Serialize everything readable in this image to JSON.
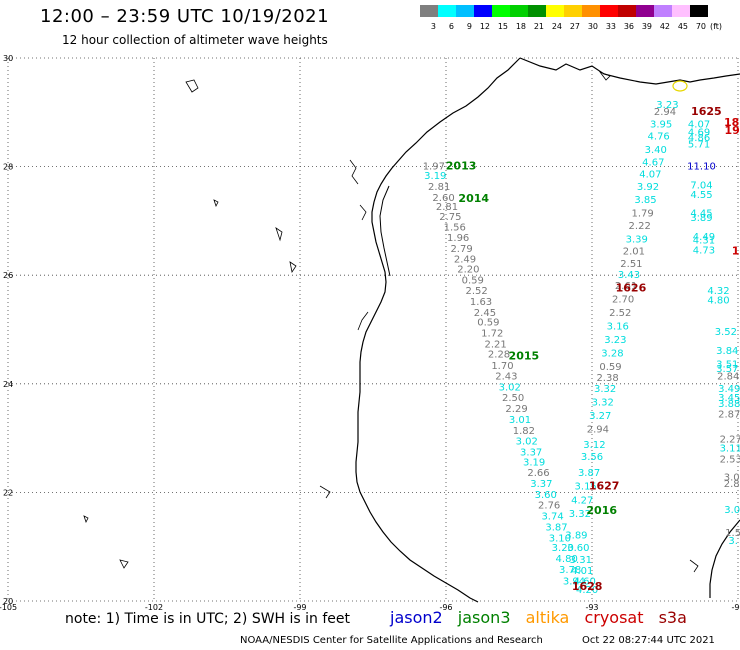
{
  "header": {
    "title": "12:00 – 23:59 UTC 10/19/2021",
    "subtitle": "12 hour collection of altimeter wave heights"
  },
  "legend": {
    "unit": "(ft)",
    "bins": [
      {
        "label": "3",
        "color": "#7f7f7f"
      },
      {
        "label": "6",
        "color": "#00ffff"
      },
      {
        "label": "9",
        "color": "#00bfff"
      },
      {
        "label": "12",
        "color": "#0000ff"
      },
      {
        "label": "15",
        "color": "#00ff00"
      },
      {
        "label": "18",
        "color": "#00d000"
      },
      {
        "label": "21",
        "color": "#009000"
      },
      {
        "label": "24",
        "color": "#ffff00"
      },
      {
        "label": "27",
        "color": "#ffd000"
      },
      {
        "label": "30",
        "color": "#ff9000"
      },
      {
        "label": "33",
        "color": "#ff0000"
      },
      {
        "label": "36",
        "color": "#c00000"
      },
      {
        "label": "39",
        "color": "#900090"
      },
      {
        "label": "42",
        "color": "#c080ff"
      },
      {
        "label": "45",
        "color": "#ffc0ff"
      },
      {
        "label": "70",
        "color": "#000000"
      }
    ]
  },
  "map": {
    "lon_range": [
      -105,
      -90
    ],
    "lat_range": [
      20,
      30
    ],
    "lon_ticks": [
      {
        "value": -105,
        "label": "-105"
      },
      {
        "value": -102,
        "label": "-102"
      },
      {
        "value": -99,
        "label": "-99"
      },
      {
        "value": -96,
        "label": "-96"
      },
      {
        "value": -93,
        "label": "-93"
      },
      {
        "value": -90,
        "label": "-90"
      }
    ],
    "lat_ticks": [
      {
        "value": 30,
        "label": "30"
      },
      {
        "value": 28,
        "label": "28"
      },
      {
        "value": 26,
        "label": "26"
      },
      {
        "value": 24,
        "label": "24"
      },
      {
        "value": 22,
        "label": "22"
      },
      {
        "value": 20,
        "label": "20"
      }
    ],
    "grid": "dotted",
    "satellites": {
      "jason2": "#0000cc",
      "jason3": "#008000",
      "altika": "#ff9900",
      "cryosat": "#cc0000",
      "s3a": "#990000",
      "other": "#00dddd",
      "gray": "#777777"
    },
    "pass_labels": [
      {
        "text": "2013",
        "lon": -95.69,
        "lat": 27.95,
        "sat": "jason3"
      },
      {
        "text": "2014",
        "lon": -95.43,
        "lat": 27.35,
        "sat": "jason3"
      },
      {
        "text": "2015",
        "lon": -94.4,
        "lat": 24.45,
        "sat": "jason3"
      },
      {
        "text": "2016",
        "lon": -92.8,
        "lat": 21.6,
        "sat": "jason3"
      },
      {
        "text": "1626",
        "lon": -92.2,
        "lat": 25.7,
        "sat": "s3a"
      },
      {
        "text": "1627",
        "lon": -92.75,
        "lat": 22.05,
        "sat": "s3a"
      },
      {
        "text": "1628",
        "lon": -93.1,
        "lat": 20.2,
        "sat": "s3a"
      },
      {
        "text": "1625",
        "lon": -90.65,
        "lat": 28.95,
        "sat": "s3a"
      },
      {
        "text": "18",
        "lon": -90.13,
        "lat": 28.75,
        "sat": "cryosat"
      },
      {
        "text": "19",
        "lon": -90.12,
        "lat": 28.6,
        "sat": "cryosat"
      },
      {
        "text": "1",
        "lon": -90.05,
        "lat": 26.38,
        "sat": "cryosat"
      }
    ],
    "observations": [
      {
        "v": "1.97",
        "lon": -96.25,
        "lat": 27.95,
        "s": "gray"
      },
      {
        "v": "3.19",
        "lon": -96.22,
        "lat": 27.77,
        "s": "other"
      },
      {
        "v": "2.81",
        "lon": -96.14,
        "lat": 27.57,
        "s": "gray"
      },
      {
        "v": "2.60",
        "lon": -96.05,
        "lat": 27.37,
        "s": "gray"
      },
      {
        "v": "2.81",
        "lon": -95.98,
        "lat": 27.2,
        "s": "gray"
      },
      {
        "v": "2.75",
        "lon": -95.91,
        "lat": 27.02,
        "s": "gray"
      },
      {
        "v": "1.56",
        "lon": -95.82,
        "lat": 26.82,
        "s": "gray"
      },
      {
        "v": "1.96",
        "lon": -95.75,
        "lat": 26.63,
        "s": "gray"
      },
      {
        "v": "2.79",
        "lon": -95.68,
        "lat": 26.43,
        "s": "gray"
      },
      {
        "v": "2.49",
        "lon": -95.61,
        "lat": 26.23,
        "s": "gray"
      },
      {
        "v": "2.20",
        "lon": -95.54,
        "lat": 26.05,
        "s": "gray"
      },
      {
        "v": "0.59",
        "lon": -95.45,
        "lat": 25.85,
        "s": "gray"
      },
      {
        "v": "2.52",
        "lon": -95.37,
        "lat": 25.65,
        "s": "gray"
      },
      {
        "v": "1.63",
        "lon": -95.28,
        "lat": 25.45,
        "s": "gray"
      },
      {
        "v": "2.45",
        "lon": -95.2,
        "lat": 25.25,
        "s": "gray"
      },
      {
        "v": "0.59",
        "lon": -95.13,
        "lat": 25.07,
        "s": "gray"
      },
      {
        "v": "1.72",
        "lon": -95.05,
        "lat": 24.87,
        "s": "gray"
      },
      {
        "v": "2.21",
        "lon": -94.98,
        "lat": 24.67,
        "s": "gray"
      },
      {
        "v": "2.28",
        "lon": -94.91,
        "lat": 24.48,
        "s": "gray"
      },
      {
        "v": "1.70",
        "lon": -94.84,
        "lat": 24.27,
        "s": "gray"
      },
      {
        "v": "2.43",
        "lon": -94.76,
        "lat": 24.08,
        "s": "gray"
      },
      {
        "v": "3.02",
        "lon": -94.69,
        "lat": 23.88,
        "s": "other"
      },
      {
        "v": "2.50",
        "lon": -94.62,
        "lat": 23.68,
        "s": "gray"
      },
      {
        "v": "2.29",
        "lon": -94.55,
        "lat": 23.48,
        "s": "gray"
      },
      {
        "v": "3.01",
        "lon": -94.48,
        "lat": 23.28,
        "s": "other"
      },
      {
        "v": "1.82",
        "lon": -94.4,
        "lat": 23.08,
        "s": "gray"
      },
      {
        "v": "3.02",
        "lon": -94.34,
        "lat": 22.88,
        "s": "other"
      },
      {
        "v": "3.37",
        "lon": -94.25,
        "lat": 22.68,
        "s": "other"
      },
      {
        "v": "3.19",
        "lon": -94.19,
        "lat": 22.5,
        "s": "other"
      },
      {
        "v": "2.66",
        "lon": -94.1,
        "lat": 22.3,
        "s": "gray"
      },
      {
        "v": "3.37",
        "lon": -94.04,
        "lat": 22.1,
        "s": "other"
      },
      {
        "v": "3.60",
        "lon": -93.95,
        "lat": 21.9,
        "s": "other"
      },
      {
        "v": "2.76",
        "lon": -93.88,
        "lat": 21.7,
        "s": "gray"
      },
      {
        "v": "3.74",
        "lon": -93.81,
        "lat": 21.5,
        "s": "other"
      },
      {
        "v": "3.87",
        "lon": -93.73,
        "lat": 21.3,
        "s": "other"
      },
      {
        "v": "3.10",
        "lon": -93.66,
        "lat": 21.1,
        "s": "other"
      },
      {
        "v": "3.20",
        "lon": -93.6,
        "lat": 20.92,
        "s": "other"
      },
      {
        "v": "4.80",
        "lon": -93.52,
        "lat": 20.72,
        "s": "other"
      },
      {
        "v": "3.78",
        "lon": -93.45,
        "lat": 20.52,
        "s": "other"
      },
      {
        "v": "3.94",
        "lon": -93.37,
        "lat": 20.3,
        "s": "other"
      },
      {
        "v": "4.20",
        "lon": -93.1,
        "lat": 20.15,
        "s": "other"
      },
      {
        "v": "4.60",
        "lon": -93.15,
        "lat": 20.3,
        "s": "other"
      },
      {
        "v": "4.01",
        "lon": -93.2,
        "lat": 20.5,
        "s": "other"
      },
      {
        "v": "3.31",
        "lon": -93.23,
        "lat": 20.7,
        "s": "other"
      },
      {
        "v": "3.60",
        "lon": -93.28,
        "lat": 20.92,
        "s": "other"
      },
      {
        "v": "3.89",
        "lon": -93.32,
        "lat": 21.15,
        "s": "other"
      },
      {
        "v": "3.32",
        "lon": -93.25,
        "lat": 21.55,
        "s": "other"
      },
      {
        "v": "4.27",
        "lon": -93.2,
        "lat": 21.8,
        "s": "other"
      },
      {
        "v": "3.15",
        "lon": -93.13,
        "lat": 22.05,
        "s": "other"
      },
      {
        "v": "3.87",
        "lon": -93.06,
        "lat": 22.3,
        "s": "other"
      },
      {
        "v": "3.56",
        "lon": -93.0,
        "lat": 22.6,
        "s": "other"
      },
      {
        "v": "3.12",
        "lon": -92.95,
        "lat": 22.82,
        "s": "other"
      },
      {
        "v": "2.94",
        "lon": -92.88,
        "lat": 23.1,
        "s": "gray"
      },
      {
        "v": "3.27",
        "lon": -92.83,
        "lat": 23.35,
        "s": "other"
      },
      {
        "v": "3.32",
        "lon": -92.78,
        "lat": 23.6,
        "s": "other"
      },
      {
        "v": "3.32",
        "lon": -92.73,
        "lat": 23.85,
        "s": "other"
      },
      {
        "v": "2.38",
        "lon": -92.68,
        "lat": 24.05,
        "s": "gray"
      },
      {
        "v": "0.59",
        "lon": -92.62,
        "lat": 24.25,
        "s": "gray"
      },
      {
        "v": "3.28",
        "lon": -92.58,
        "lat": 24.5,
        "s": "other"
      },
      {
        "v": "3.23",
        "lon": -92.52,
        "lat": 24.75,
        "s": "other"
      },
      {
        "v": "3.16",
        "lon": -92.47,
        "lat": 25.0,
        "s": "other"
      },
      {
        "v": "2.52",
        "lon": -92.42,
        "lat": 25.25,
        "s": "gray"
      },
      {
        "v": "2.70",
        "lon": -92.36,
        "lat": 25.5,
        "s": "gray"
      },
      {
        "v": "2.61",
        "lon": -92.3,
        "lat": 25.75,
        "s": "gray"
      },
      {
        "v": "3.43",
        "lon": -92.24,
        "lat": 25.95,
        "s": "other"
      },
      {
        "v": "2.51",
        "lon": -92.19,
        "lat": 26.15,
        "s": "gray"
      },
      {
        "v": "2.01",
        "lon": -92.14,
        "lat": 26.38,
        "s": "gray"
      },
      {
        "v": "3.39",
        "lon": -92.08,
        "lat": 26.6,
        "s": "other"
      },
      {
        "v": "2.22",
        "lon": -92.02,
        "lat": 26.85,
        "s": "gray"
      },
      {
        "v": "1.79",
        "lon": -91.96,
        "lat": 27.08,
        "s": "gray"
      },
      {
        "v": "3.85",
        "lon": -91.9,
        "lat": 27.33,
        "s": "other"
      },
      {
        "v": "3.92",
        "lon": -91.85,
        "lat": 27.57,
        "s": "other"
      },
      {
        "v": "4.07",
        "lon": -91.8,
        "lat": 27.8,
        "s": "other"
      },
      {
        "v": "4.67",
        "lon": -91.74,
        "lat": 28.02,
        "s": "other"
      },
      {
        "v": "3.40",
        "lon": -91.69,
        "lat": 28.25,
        "s": "other"
      },
      {
        "v": "4.76",
        "lon": -91.63,
        "lat": 28.5,
        "s": "other"
      },
      {
        "v": "3.95",
        "lon": -91.58,
        "lat": 28.72,
        "s": "other"
      },
      {
        "v": "2.94",
        "lon": -91.5,
        "lat": 28.95,
        "s": "gray"
      },
      {
        "v": "3.23",
        "lon": -91.45,
        "lat": 29.08,
        "s": "other"
      },
      {
        "v": "4.07",
        "lon": -90.8,
        "lat": 28.72,
        "s": "other"
      },
      {
        "v": "4.69",
        "lon": -90.8,
        "lat": 28.57,
        "s": "other"
      },
      {
        "v": "4.86",
        "lon": -90.8,
        "lat": 28.47,
        "s": "other"
      },
      {
        "v": "5.71",
        "lon": -90.8,
        "lat": 28.35,
        "s": "other"
      },
      {
        "v": "11.10",
        "lon": -90.75,
        "lat": 27.95,
        "s": "jason2"
      },
      {
        "v": "7.04",
        "lon": -90.75,
        "lat": 27.6,
        "s": "other"
      },
      {
        "v": "4.55",
        "lon": -90.75,
        "lat": 27.42,
        "s": "other"
      },
      {
        "v": "4.45",
        "lon": -90.75,
        "lat": 27.08,
        "s": "other"
      },
      {
        "v": "3.89",
        "lon": -90.75,
        "lat": 27.0,
        "s": "other"
      },
      {
        "v": "4.49",
        "lon": -90.7,
        "lat": 26.65,
        "s": "other"
      },
      {
        "v": "4.31",
        "lon": -90.7,
        "lat": 26.58,
        "s": "other"
      },
      {
        "v": "4.73",
        "lon": -90.7,
        "lat": 26.4,
        "s": "other"
      },
      {
        "v": "4.32",
        "lon": -90.4,
        "lat": 25.65,
        "s": "other"
      },
      {
        "v": "4.80",
        "lon": -90.4,
        "lat": 25.48,
        "s": "other"
      },
      {
        "v": "3.52",
        "lon": -90.25,
        "lat": 24.9,
        "s": "other"
      },
      {
        "v": "3.84",
        "lon": -90.22,
        "lat": 24.55,
        "s": "other"
      },
      {
        "v": "3.51",
        "lon": -90.22,
        "lat": 24.3,
        "s": "other"
      },
      {
        "v": "3.57",
        "lon": -90.22,
        "lat": 24.22,
        "s": "other"
      },
      {
        "v": "2.84",
        "lon": -90.2,
        "lat": 24.08,
        "s": "gray"
      },
      {
        "v": "3.49",
        "lon": -90.18,
        "lat": 23.85,
        "s": "other"
      },
      {
        "v": "3.45",
        "lon": -90.18,
        "lat": 23.68,
        "s": "other"
      },
      {
        "v": "3.88",
        "lon": -90.18,
        "lat": 23.57,
        "s": "other"
      },
      {
        "v": "2.87",
        "lon": -90.18,
        "lat": 23.38,
        "s": "gray"
      },
      {
        "v": "2.27",
        "lon": -90.15,
        "lat": 22.92,
        "s": "gray"
      },
      {
        "v": "3.11",
        "lon": -90.15,
        "lat": 22.75,
        "s": "other"
      },
      {
        "v": "2.53",
        "lon": -90.15,
        "lat": 22.55,
        "s": "gray"
      },
      {
        "v": "3.0",
        "lon": -90.13,
        "lat": 22.22,
        "s": "gray"
      },
      {
        "v": "2.8",
        "lon": -90.13,
        "lat": 22.1,
        "s": "gray"
      },
      {
        "v": "3.0",
        "lon": -90.12,
        "lat": 21.62,
        "s": "other"
      },
      {
        "v": "1.5",
        "lon": -90.1,
        "lat": 21.2,
        "s": "gray"
      },
      {
        "v": "3.",
        "lon": -90.1,
        "lat": 21.05,
        "s": "other"
      }
    ]
  },
  "footer": {
    "note": "note: 1) Time is in UTC; 2) SWH is in feet",
    "sat_names": {
      "jason2": "jason2",
      "jason3": "jason3",
      "altika": "altika",
      "cryosat": "cryosat",
      "s3a": "s3a"
    },
    "credit": "NOAA/NESDIS Center for Satellite Applications and Research",
    "timestamp": "Oct 22 08:27:44 UTC 2021"
  }
}
